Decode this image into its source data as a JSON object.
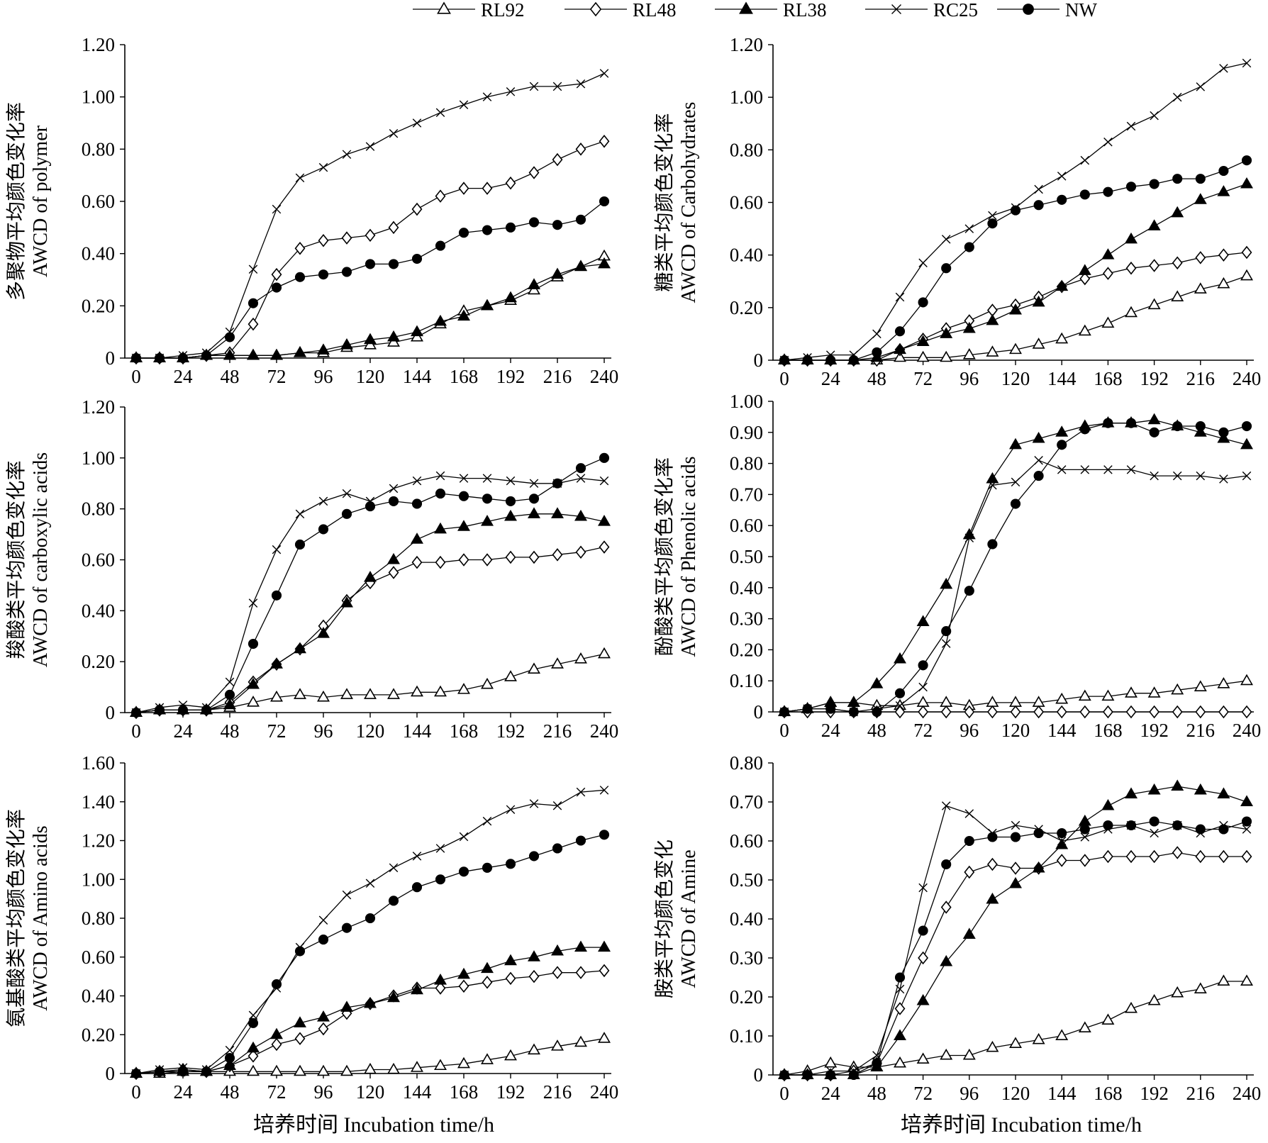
{
  "legend": {
    "placement": "top-center",
    "entries": [
      {
        "name": "RL92",
        "marker": "triangle-open"
      },
      {
        "name": "RL48",
        "marker": "diamond-open"
      },
      {
        "name": "RL38",
        "marker": "triangle-filled"
      },
      {
        "name": "RC25",
        "marker": "cross"
      },
      {
        "name": "NW",
        "marker": "circle-filled"
      }
    ]
  },
  "shared_xlabel": "培养时间 Incubation time/h",
  "colors": {
    "line": "#000000",
    "axis": "#000000",
    "background": "#ffffff"
  },
  "chart_data": [
    {
      "type": "line",
      "ylabel": [
        "多聚物平均颜色变化率",
        "AWCD of polymer"
      ],
      "xlabel": "",
      "x": [
        0,
        12,
        24,
        36,
        48,
        60,
        72,
        84,
        96,
        108,
        120,
        132,
        144,
        156,
        168,
        180,
        192,
        204,
        216,
        228,
        240
      ],
      "xlim": [
        0,
        240
      ],
      "xticks": [
        "0",
        "24",
        "48",
        "72",
        "96",
        "120",
        "144",
        "168",
        "192",
        "216",
        "240"
      ],
      "ylim": [
        0,
        1.2
      ],
      "yticks": [
        "0",
        "0.20",
        "0.40",
        "0.60",
        "0.80",
        "1.00",
        "1.20"
      ],
      "series": [
        {
          "name": "RL92",
          "values": [
            0.0,
            0.0,
            0.0,
            0.01,
            0.01,
            0.01,
            0.01,
            0.02,
            0.02,
            0.04,
            0.05,
            0.06,
            0.08,
            0.13,
            0.18,
            0.2,
            0.22,
            0.26,
            0.31,
            0.35,
            0.39
          ]
        },
        {
          "name": "RL48",
          "values": [
            0.0,
            0.0,
            0.0,
            0.01,
            0.02,
            0.13,
            0.32,
            0.42,
            0.45,
            0.46,
            0.47,
            0.5,
            0.57,
            0.62,
            0.65,
            0.65,
            0.67,
            0.71,
            0.76,
            0.8,
            0.83
          ]
        },
        {
          "name": "RL38",
          "values": [
            0.0,
            0.0,
            0.0,
            0.01,
            0.01,
            0.01,
            0.01,
            0.02,
            0.03,
            0.05,
            0.07,
            0.08,
            0.1,
            0.14,
            0.16,
            0.2,
            0.23,
            0.28,
            0.32,
            0.35,
            0.36
          ]
        },
        {
          "name": "RC25",
          "values": [
            0.0,
            0.0,
            0.01,
            0.02,
            0.1,
            0.34,
            0.57,
            0.69,
            0.73,
            0.78,
            0.81,
            0.86,
            0.9,
            0.94,
            0.97,
            1.0,
            1.02,
            1.04,
            1.04,
            1.05,
            1.09
          ]
        },
        {
          "name": "NW",
          "values": [
            0.0,
            0.0,
            0.0,
            0.01,
            0.08,
            0.21,
            0.27,
            0.31,
            0.32,
            0.33,
            0.36,
            0.36,
            0.38,
            0.43,
            0.48,
            0.49,
            0.5,
            0.52,
            0.51,
            0.53,
            0.6
          ]
        }
      ]
    },
    {
      "type": "line",
      "ylabel": [
        "糖类平均颜色变化率",
        "AWCD of Carbohydrates"
      ],
      "xlabel": "",
      "x": [
        0,
        12,
        24,
        36,
        48,
        60,
        72,
        84,
        96,
        108,
        120,
        132,
        144,
        156,
        168,
        180,
        192,
        204,
        216,
        228,
        240
      ],
      "xlim": [
        0,
        240
      ],
      "xticks": [
        "0",
        "24",
        "48",
        "72",
        "96",
        "120",
        "144",
        "168",
        "192",
        "216",
        "240"
      ],
      "ylim": [
        0,
        1.2
      ],
      "yticks": [
        "0",
        "0.20",
        "0.40",
        "0.60",
        "0.80",
        "1.00",
        "1.20"
      ],
      "series": [
        {
          "name": "RL92",
          "values": [
            0.0,
            0.0,
            0.0,
            0.0,
            0.0,
            0.01,
            0.01,
            0.01,
            0.02,
            0.03,
            0.04,
            0.06,
            0.08,
            0.11,
            0.14,
            0.18,
            0.21,
            0.24,
            0.27,
            0.29,
            0.32
          ]
        },
        {
          "name": "RL48",
          "values": [
            0.0,
            0.0,
            0.0,
            0.0,
            0.0,
            0.04,
            0.08,
            0.12,
            0.15,
            0.19,
            0.21,
            0.24,
            0.28,
            0.31,
            0.33,
            0.35,
            0.36,
            0.37,
            0.39,
            0.4,
            0.41
          ]
        },
        {
          "name": "RL38",
          "values": [
            0.0,
            0.0,
            0.0,
            0.0,
            0.01,
            0.04,
            0.07,
            0.1,
            0.12,
            0.15,
            0.19,
            0.22,
            0.28,
            0.34,
            0.4,
            0.46,
            0.51,
            0.56,
            0.61,
            0.64,
            0.67
          ]
        },
        {
          "name": "RC25",
          "values": [
            0.0,
            0.01,
            0.02,
            0.02,
            0.1,
            0.24,
            0.37,
            0.46,
            0.5,
            0.55,
            0.58,
            0.65,
            0.7,
            0.76,
            0.83,
            0.89,
            0.93,
            1.0,
            1.04,
            1.11,
            1.13
          ]
        },
        {
          "name": "NW",
          "values": [
            0.0,
            0.0,
            0.0,
            0.0,
            0.03,
            0.11,
            0.22,
            0.35,
            0.43,
            0.52,
            0.57,
            0.59,
            0.61,
            0.63,
            0.64,
            0.66,
            0.67,
            0.69,
            0.69,
            0.72,
            0.76
          ]
        }
      ]
    },
    {
      "type": "line",
      "ylabel": [
        "羧酸类平均颜色变化率",
        "AWCD of carboxylic acids"
      ],
      "xlabel": "",
      "x": [
        0,
        12,
        24,
        36,
        48,
        60,
        72,
        84,
        96,
        108,
        120,
        132,
        144,
        156,
        168,
        180,
        192,
        204,
        216,
        228,
        240
      ],
      "xlim": [
        0,
        240
      ],
      "xticks": [
        "0",
        "24",
        "48",
        "72",
        "96",
        "120",
        "144",
        "168",
        "192",
        "216",
        "240"
      ],
      "ylim": [
        0,
        1.2
      ],
      "yticks": [
        "0",
        "0.20",
        "0.40",
        "0.60",
        "0.80",
        "1.00",
        "1.20"
      ],
      "series": [
        {
          "name": "RL92",
          "values": [
            0.0,
            0.01,
            0.01,
            0.01,
            0.02,
            0.04,
            0.06,
            0.07,
            0.06,
            0.07,
            0.07,
            0.07,
            0.08,
            0.08,
            0.09,
            0.11,
            0.14,
            0.17,
            0.19,
            0.21,
            0.23
          ]
        },
        {
          "name": "RL48",
          "values": [
            0.0,
            0.01,
            0.01,
            0.01,
            0.04,
            0.12,
            0.19,
            0.25,
            0.34,
            0.44,
            0.51,
            0.55,
            0.59,
            0.59,
            0.6,
            0.6,
            0.61,
            0.61,
            0.62,
            0.63,
            0.65
          ]
        },
        {
          "name": "RL38",
          "values": [
            0.0,
            0.01,
            0.01,
            0.01,
            0.03,
            0.11,
            0.19,
            0.25,
            0.31,
            0.43,
            0.53,
            0.6,
            0.68,
            0.72,
            0.73,
            0.75,
            0.77,
            0.78,
            0.78,
            0.77,
            0.75
          ]
        },
        {
          "name": "RC25",
          "values": [
            0.0,
            0.02,
            0.03,
            0.02,
            0.12,
            0.43,
            0.64,
            0.78,
            0.83,
            0.86,
            0.83,
            0.88,
            0.91,
            0.93,
            0.92,
            0.92,
            0.91,
            0.9,
            0.9,
            0.92,
            0.91
          ]
        },
        {
          "name": "NW",
          "values": [
            0.0,
            0.01,
            0.01,
            0.01,
            0.07,
            0.27,
            0.46,
            0.66,
            0.72,
            0.78,
            0.81,
            0.83,
            0.82,
            0.86,
            0.85,
            0.84,
            0.83,
            0.84,
            0.9,
            0.96,
            1.0
          ]
        }
      ]
    },
    {
      "type": "line",
      "ylabel": [
        "酚酸类平均颜色变化率",
        "AWCD of Phenolic acids"
      ],
      "xlabel": "",
      "x": [
        0,
        12,
        24,
        36,
        48,
        60,
        72,
        84,
        96,
        108,
        120,
        132,
        144,
        156,
        168,
        180,
        192,
        204,
        216,
        228,
        240
      ],
      "xlim": [
        0,
        240
      ],
      "xticks": [
        "0",
        "24",
        "48",
        "72",
        "96",
        "120",
        "144",
        "168",
        "192",
        "216",
        "240"
      ],
      "ylim": [
        0,
        1.0
      ],
      "yticks": [
        "0",
        "0.10",
        "0.20",
        "0.30",
        "0.40",
        "0.50",
        "0.60",
        "0.70",
        "0.80",
        "0.90",
        "1.00"
      ],
      "series": [
        {
          "name": "RL92",
          "values": [
            0.0,
            0.01,
            0.03,
            0.03,
            0.02,
            0.02,
            0.03,
            0.03,
            0.02,
            0.03,
            0.03,
            0.03,
            0.04,
            0.05,
            0.05,
            0.06,
            0.06,
            0.07,
            0.08,
            0.09,
            0.1
          ]
        },
        {
          "name": "RL48",
          "values": [
            0.0,
            0.0,
            0.0,
            0.0,
            0.0,
            0.0,
            0.0,
            0.0,
            0.0,
            0.0,
            0.0,
            0.0,
            0.0,
            0.0,
            0.0,
            0.0,
            0.0,
            0.0,
            0.0,
            0.0,
            0.0
          ]
        },
        {
          "name": "RL38",
          "values": [
            0.0,
            0.01,
            0.03,
            0.03,
            0.09,
            0.17,
            0.29,
            0.41,
            0.57,
            0.75,
            0.86,
            0.88,
            0.9,
            0.92,
            0.93,
            0.93,
            0.94,
            0.92,
            0.9,
            0.88,
            0.86
          ]
        },
        {
          "name": "RC25",
          "values": [
            0.0,
            0.01,
            0.01,
            0.0,
            0.01,
            0.02,
            0.08,
            0.22,
            0.56,
            0.73,
            0.74,
            0.81,
            0.78,
            0.78,
            0.78,
            0.78,
            0.76,
            0.76,
            0.76,
            0.75,
            0.76
          ]
        },
        {
          "name": "NW",
          "values": [
            0.0,
            0.01,
            0.01,
            0.0,
            0.0,
            0.06,
            0.15,
            0.26,
            0.39,
            0.54,
            0.67,
            0.76,
            0.86,
            0.91,
            0.93,
            0.93,
            0.9,
            0.92,
            0.92,
            0.9,
            0.92
          ]
        }
      ]
    },
    {
      "type": "line",
      "ylabel": [
        "氨基酸类平均颜色变化率",
        "AWCD of Amino acids"
      ],
      "xlabel": "",
      "x": [
        0,
        12,
        24,
        36,
        48,
        60,
        72,
        84,
        96,
        108,
        120,
        132,
        144,
        156,
        168,
        180,
        192,
        204,
        216,
        228,
        240
      ],
      "xlim": [
        0,
        240
      ],
      "xticks": [
        "0",
        "24",
        "48",
        "72",
        "96",
        "120",
        "144",
        "168",
        "192",
        "216",
        "240"
      ],
      "ylim": [
        0,
        1.6
      ],
      "yticks": [
        "0",
        "0.20",
        "0.40",
        "0.60",
        "0.80",
        "1.00",
        "1.20",
        "1.40",
        "1.60"
      ],
      "series": [
        {
          "name": "RL92",
          "values": [
            0.0,
            0.0,
            0.01,
            0.01,
            0.01,
            0.01,
            0.01,
            0.01,
            0.01,
            0.01,
            0.02,
            0.02,
            0.03,
            0.04,
            0.05,
            0.07,
            0.09,
            0.12,
            0.14,
            0.16,
            0.18
          ]
        },
        {
          "name": "RL48",
          "values": [
            0.0,
            0.01,
            0.02,
            0.01,
            0.04,
            0.09,
            0.15,
            0.18,
            0.23,
            0.31,
            0.36,
            0.4,
            0.44,
            0.44,
            0.45,
            0.47,
            0.49,
            0.5,
            0.52,
            0.52,
            0.53
          ]
        },
        {
          "name": "RL38",
          "values": [
            0.0,
            0.01,
            0.02,
            0.01,
            0.04,
            0.13,
            0.2,
            0.26,
            0.29,
            0.34,
            0.36,
            0.39,
            0.43,
            0.48,
            0.51,
            0.54,
            0.58,
            0.6,
            0.63,
            0.65,
            0.65
          ]
        },
        {
          "name": "RC25",
          "values": [
            0.0,
            0.02,
            0.03,
            0.02,
            0.12,
            0.3,
            0.44,
            0.65,
            0.79,
            0.92,
            0.98,
            1.06,
            1.12,
            1.16,
            1.22,
            1.3,
            1.36,
            1.39,
            1.38,
            1.45,
            1.46
          ]
        },
        {
          "name": "NW",
          "values": [
            0.0,
            0.01,
            0.01,
            0.01,
            0.08,
            0.26,
            0.46,
            0.63,
            0.69,
            0.75,
            0.8,
            0.89,
            0.96,
            1.0,
            1.04,
            1.06,
            1.08,
            1.12,
            1.16,
            1.2,
            1.23
          ]
        }
      ]
    },
    {
      "type": "line",
      "ylabel": [
        "胺类平均颜色变化",
        "AWCD of Amine"
      ],
      "xlabel": "",
      "x": [
        0,
        12,
        24,
        36,
        48,
        60,
        72,
        84,
        96,
        108,
        120,
        132,
        144,
        156,
        168,
        180,
        192,
        204,
        216,
        228,
        240
      ],
      "xlim": [
        0,
        240
      ],
      "xticks": [
        "0",
        "24",
        "48",
        "72",
        "96",
        "120",
        "144",
        "168",
        "192",
        "216",
        "240"
      ],
      "ylim": [
        0,
        0.8
      ],
      "yticks": [
        "0",
        "0.10",
        "0.20",
        "0.30",
        "0.40",
        "0.50",
        "0.60",
        "0.70",
        "0.80"
      ],
      "series": [
        {
          "name": "RL92",
          "values": [
            0.0,
            0.01,
            0.03,
            0.02,
            0.02,
            0.03,
            0.04,
            0.05,
            0.05,
            0.07,
            0.08,
            0.09,
            0.1,
            0.12,
            0.14,
            0.17,
            0.19,
            0.21,
            0.22,
            0.24,
            0.24
          ]
        },
        {
          "name": "RL48",
          "values": [
            0.0,
            0.0,
            0.0,
            0.01,
            0.03,
            0.17,
            0.3,
            0.43,
            0.52,
            0.54,
            0.53,
            0.53,
            0.55,
            0.55,
            0.56,
            0.56,
            0.56,
            0.57,
            0.56,
            0.56,
            0.56
          ]
        },
        {
          "name": "RL38",
          "values": [
            0.0,
            0.0,
            0.0,
            0.0,
            0.02,
            0.1,
            0.19,
            0.29,
            0.36,
            0.45,
            0.49,
            0.53,
            0.59,
            0.65,
            0.69,
            0.72,
            0.73,
            0.74,
            0.73,
            0.72,
            0.7
          ]
        },
        {
          "name": "RC25",
          "values": [
            0.0,
            0.0,
            0.01,
            0.01,
            0.05,
            0.22,
            0.48,
            0.69,
            0.67,
            0.62,
            0.64,
            0.63,
            0.6,
            0.61,
            0.63,
            0.64,
            0.62,
            0.64,
            0.62,
            0.64,
            0.63
          ]
        },
        {
          "name": "NW",
          "values": [
            0.0,
            0.0,
            0.0,
            0.0,
            0.03,
            0.25,
            0.37,
            0.54,
            0.6,
            0.61,
            0.61,
            0.62,
            0.62,
            0.63,
            0.64,
            0.64,
            0.65,
            0.64,
            0.63,
            0.63,
            0.65
          ]
        }
      ]
    }
  ]
}
